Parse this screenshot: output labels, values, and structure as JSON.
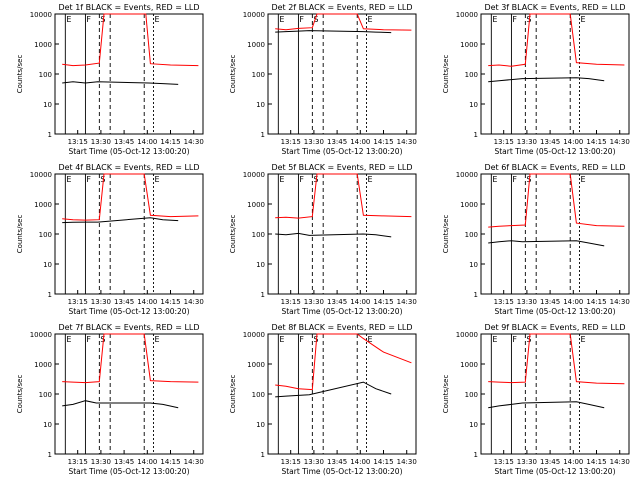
{
  "figure": {
    "colors": {
      "events": "#000000",
      "lld": "#ff0000",
      "axes": "#000000",
      "background": "#ffffff"
    },
    "shared": {
      "xlabel": "Start Time (05-Oct-12 13:00:20)",
      "ylabel": "Counts/sec",
      "x_ticks": [
        "13:15",
        "13:30",
        "13:45",
        "14:00",
        "14:15",
        "14:30"
      ],
      "y_ticks": [
        "1",
        "10",
        "100",
        "1000",
        "10000"
      ],
      "markers": [
        "E",
        "F",
        "S",
        "E"
      ]
    }
  },
  "chart_data": [
    {
      "type": "line",
      "title": "Det 1f BLACK = Events, RED = LLD",
      "ylim": [
        1,
        10000
      ],
      "yscale": "log",
      "xlim": [
        "13:00:20",
        "14:36"
      ],
      "series": [
        {
          "name": "Events",
          "color": "#000000",
          "x": [
            "13:05",
            "13:12",
            "13:20",
            "13:28",
            "14:01",
            "14:10",
            "14:20"
          ],
          "values": [
            50,
            55,
            50,
            55,
            50,
            48,
            45
          ]
        },
        {
          "name": "LLD",
          "color": "#ff0000",
          "x": [
            "13:05",
            "13:12",
            "13:20",
            "13:29",
            "13:32",
            "13:59",
            "14:02",
            "14:15",
            "14:33"
          ],
          "values": [
            210,
            190,
            200,
            230,
            10000,
            10000,
            220,
            200,
            190
          ]
        }
      ]
    },
    {
      "type": "line",
      "title": "Det 2f BLACK = Events, RED = LLD",
      "ylim": [
        1,
        10000
      ],
      "yscale": "log",
      "xlim": [
        "13:00:20",
        "14:36"
      ],
      "series": [
        {
          "name": "Events",
          "color": "#000000",
          "x": [
            "13:05",
            "13:12",
            "13:20",
            "13:27",
            "14:02",
            "14:10",
            "14:20"
          ],
          "values": [
            2500,
            2600,
            2700,
            2800,
            2600,
            2500,
            2400
          ]
        },
        {
          "name": "LLD",
          "color": "#ff0000",
          "x": [
            "13:05",
            "13:12",
            "13:20",
            "13:29",
            "13:32",
            "13:58",
            "14:02",
            "14:15",
            "14:33"
          ],
          "values": [
            3200,
            3000,
            3300,
            3500,
            10000,
            10000,
            3200,
            3000,
            2900
          ]
        }
      ]
    },
    {
      "type": "line",
      "title": "Det 3f BLACK = Events, RED = LLD",
      "ylim": [
        1,
        10000
      ],
      "yscale": "log",
      "xlim": [
        "13:00:20",
        "14:36"
      ],
      "series": [
        {
          "name": "Events",
          "color": "#000000",
          "x": [
            "13:05",
            "13:12",
            "13:20",
            "13:27",
            "14:02",
            "14:10",
            "14:20"
          ],
          "values": [
            55,
            60,
            65,
            70,
            75,
            70,
            60
          ]
        },
        {
          "name": "LLD",
          "color": "#ff0000",
          "x": [
            "13:05",
            "13:12",
            "13:20",
            "13:29",
            "13:32",
            "13:58",
            "14:02",
            "14:15",
            "14:33"
          ],
          "values": [
            190,
            200,
            180,
            210,
            10000,
            10000,
            240,
            210,
            200
          ]
        }
      ]
    },
    {
      "type": "line",
      "title": "Det 4f BLACK = Events, RED = LLD",
      "ylim": [
        1,
        10000
      ],
      "yscale": "log",
      "xlim": [
        "13:00:20",
        "14:36"
      ],
      "series": [
        {
          "name": "Events",
          "color": "#000000",
          "x": [
            "13:05",
            "13:12",
            "13:20",
            "13:28",
            "14:02",
            "14:10",
            "14:20"
          ],
          "values": [
            240,
            245,
            250,
            250,
            350,
            300,
            280
          ]
        },
        {
          "name": "LLD",
          "color": "#ff0000",
          "x": [
            "13:05",
            "13:12",
            "13:20",
            "13:29",
            "13:32",
            "13:58",
            "14:02",
            "14:15",
            "14:33"
          ],
          "values": [
            320,
            300,
            290,
            300,
            10000,
            10000,
            420,
            380,
            400
          ]
        }
      ]
    },
    {
      "type": "line",
      "title": "Det 5f BLACK = Events, RED = LLD",
      "ylim": [
        1,
        10000
      ],
      "yscale": "log",
      "xlim": [
        "13:00:20",
        "14:36"
      ],
      "series": [
        {
          "name": "Events",
          "color": "#000000",
          "x": [
            "13:05",
            "13:12",
            "13:20",
            "13:27",
            "14:02",
            "14:10",
            "14:20"
          ],
          "values": [
            100,
            95,
            105,
            90,
            100,
            95,
            80
          ]
        },
        {
          "name": "LLD",
          "color": "#ff0000",
          "x": [
            "13:05",
            "13:12",
            "13:20",
            "13:29",
            "13:32",
            "13:58",
            "14:02",
            "14:15",
            "14:33"
          ],
          "values": [
            350,
            360,
            340,
            380,
            10000,
            10000,
            420,
            400,
            380
          ]
        }
      ]
    },
    {
      "type": "line",
      "title": "Det 6f BLACK = Events, RED = LLD",
      "ylim": [
        1,
        10000
      ],
      "yscale": "log",
      "xlim": [
        "13:00:20",
        "14:36"
      ],
      "series": [
        {
          "name": "Events",
          "color": "#000000",
          "x": [
            "13:05",
            "13:12",
            "13:20",
            "13:27",
            "14:02",
            "14:10",
            "14:20"
          ],
          "values": [
            50,
            55,
            60,
            55,
            60,
            50,
            40
          ]
        },
        {
          "name": "LLD",
          "color": "#ff0000",
          "x": [
            "13:05",
            "13:12",
            "13:20",
            "13:29",
            "13:32",
            "13:58",
            "14:02",
            "14:15",
            "14:33"
          ],
          "values": [
            170,
            180,
            190,
            200,
            10000,
            10000,
            230,
            190,
            180
          ]
        }
      ]
    },
    {
      "type": "line",
      "title": "Det 7f BLACK = Events, RED = LLD",
      "ylim": [
        1,
        10000
      ],
      "yscale": "log",
      "xlim": [
        "13:00:20",
        "14:36"
      ],
      "series": [
        {
          "name": "Events",
          "color": "#000000",
          "x": [
            "13:05",
            "13:12",
            "13:20",
            "13:27",
            "14:02",
            "14:10",
            "14:20"
          ],
          "values": [
            40,
            45,
            60,
            50,
            50,
            45,
            35
          ]
        },
        {
          "name": "LLD",
          "color": "#ff0000",
          "x": [
            "13:05",
            "13:12",
            "13:20",
            "13:29",
            "13:32",
            "13:58",
            "14:02",
            "14:15",
            "14:33"
          ],
          "values": [
            260,
            250,
            240,
            260,
            10000,
            10000,
            280,
            260,
            250
          ]
        }
      ]
    },
    {
      "type": "line",
      "title": "Det 8f BLACK = Events, RED = LLD",
      "ylim": [
        1,
        10000
      ],
      "yscale": "log",
      "xlim": [
        "13:00:20",
        "14:36"
      ],
      "series": [
        {
          "name": "Events",
          "color": "#000000",
          "x": [
            "13:05",
            "13:12",
            "13:20",
            "13:27",
            "14:02",
            "14:10",
            "14:20"
          ],
          "values": [
            80,
            85,
            90,
            95,
            250,
            150,
            100
          ]
        },
        {
          "name": "LLD",
          "color": "#ff0000",
          "x": [
            "13:05",
            "13:12",
            "13:20",
            "13:29",
            "13:32",
            "13:58",
            "14:02",
            "14:15",
            "14:33"
          ],
          "values": [
            200,
            180,
            150,
            140,
            10000,
            10000,
            7000,
            2500,
            1100
          ]
        }
      ]
    },
    {
      "type": "line",
      "title": "Det 9f BLACK = Events, RED = LLD",
      "ylim": [
        1,
        10000
      ],
      "yscale": "log",
      "xlim": [
        "13:00:20",
        "14:36"
      ],
      "series": [
        {
          "name": "Events",
          "color": "#000000",
          "x": [
            "13:05",
            "13:12",
            "13:20",
            "13:27",
            "14:02",
            "14:10",
            "14:20"
          ],
          "values": [
            35,
            40,
            45,
            50,
            55,
            45,
            35
          ]
        },
        {
          "name": "LLD",
          "color": "#ff0000",
          "x": [
            "13:05",
            "13:12",
            "13:20",
            "13:29",
            "13:32",
            "13:58",
            "14:02",
            "14:15",
            "14:33"
          ],
          "values": [
            260,
            250,
            240,
            250,
            10000,
            10000,
            260,
            230,
            220
          ]
        }
      ]
    }
  ]
}
